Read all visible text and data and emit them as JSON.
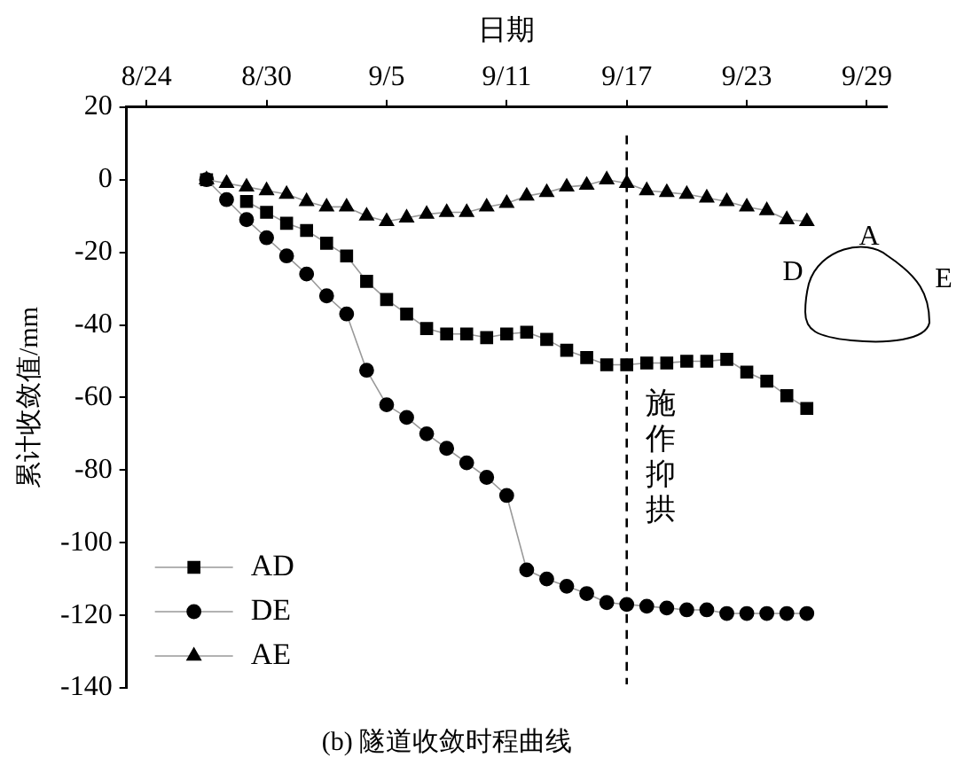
{
  "chart_data": {
    "type": "line",
    "title": "(b) 隧道收敛时程曲线",
    "xlabel": "日期",
    "ylabel": "累计收敛值/mm",
    "xlim": [
      "--08-23",
      "--09-30"
    ],
    "xticks": [
      {
        "value": "--08-24",
        "label": "8/24"
      },
      {
        "value": "--08-30",
        "label": "8/30"
      },
      {
        "value": "--09-05",
        "label": "9/5"
      },
      {
        "value": "--09-11",
        "label": "9/11"
      },
      {
        "value": "--09-17",
        "label": "9/17"
      },
      {
        "value": "--09-23",
        "label": "9/23"
      },
      {
        "value": "--09-29",
        "label": "9/29"
      }
    ],
    "ylim": [
      -140,
      20
    ],
    "yticks": [
      -140,
      -120,
      -100,
      -80,
      -60,
      -40,
      -20,
      0,
      20
    ],
    "x": [
      "--08-27",
      "--08-28",
      "--08-29",
      "--08-30",
      "--08-31",
      "--09-01",
      "--09-02",
      "--09-03",
      "--09-04",
      "--09-05",
      "--09-06",
      "--09-07",
      "--09-08",
      "--09-09",
      "--09-10",
      "--09-11",
      "--09-12",
      "--09-13",
      "--09-14",
      "--09-15",
      "--09-16",
      "--09-17",
      "--09-18",
      "--09-19",
      "--09-20",
      "--09-21",
      "--09-22",
      "--09-23",
      "--09-24",
      "--09-25",
      "--09-26"
    ],
    "series": [
      {
        "name": "AD",
        "color": "#000000",
        "marker": "square",
        "values": [
          0,
          null,
          -6,
          -9,
          -12,
          -14,
          -17.5,
          -21,
          -28,
          -33,
          -37,
          -41,
          -42.5,
          -42.5,
          -43.5,
          -42.5,
          -42,
          -44,
          -47,
          -49,
          -51,
          -51,
          -50.5,
          -50.5,
          -50,
          -50,
          -49.5,
          -53,
          -55.5,
          -59.5,
          -63
        ]
      },
      {
        "name": "DE",
        "color": "#000000",
        "marker": "circle",
        "values": [
          0,
          -5.5,
          -11,
          -16,
          -21,
          -26,
          -32,
          -37,
          -52.5,
          -62,
          -65.5,
          -70,
          -74,
          -78,
          -82,
          -87,
          -107.5,
          -110,
          -112,
          -114,
          -116.5,
          -117,
          -117.5,
          -118,
          -118.5,
          -118.5,
          -119.5,
          -119.5,
          -119.5,
          -119.5,
          -119.5
        ]
      },
      {
        "name": "AE",
        "color": "#000000",
        "marker": "triangle",
        "values": [
          0,
          -1,
          -2,
          -3,
          -4,
          -6,
          -7.5,
          -7.5,
          -10,
          -11.5,
          -10.5,
          -9.5,
          -9,
          -9,
          -7.5,
          -6.5,
          -4.5,
          -3.5,
          -2,
          -1.5,
          0,
          -1,
          -3,
          -3.5,
          -4,
          -5,
          -6,
          -7.5,
          -8.5,
          -11,
          -11.5
        ]
      }
    ],
    "ref_lines": [
      {
        "axis": "x",
        "value": "--09-17",
        "label": "施作抑拱",
        "line_style": "dashed",
        "color": "#000000"
      }
    ],
    "annotations": [
      "A",
      "D",
      "E"
    ],
    "legend": "bottom left",
    "grid": false,
    "line_style": "solid"
  }
}
